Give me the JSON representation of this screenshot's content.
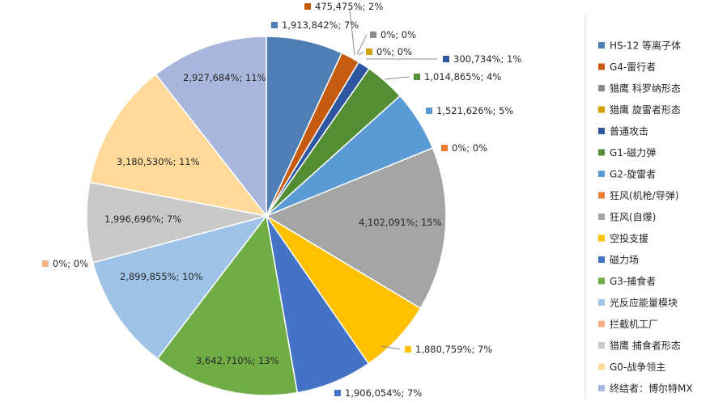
{
  "chart_data": {
    "type": "pie",
    "title": "",
    "legend_position": "right",
    "slices": [
      {
        "name": "HS-12 等离子体",
        "value": 1913842,
        "label": "1,913,842%; 7%",
        "color": "#4e7eb3"
      },
      {
        "name": "G4-雷行者",
        "value": 475475,
        "label": "475,475%; 2%",
        "color": "#c55a11"
      },
      {
        "name": "猎鹰 科罗纳形态",
        "value": 0,
        "label": "0%; 0%",
        "color": "#8c8c8c"
      },
      {
        "name": "猎鹰 旋雷者形态",
        "value": 0,
        "label": "0%; 0%",
        "color": "#d4a000"
      },
      {
        "name": "普通攻击",
        "value": 300734,
        "label": "300,734%; 1%",
        "color": "#2f56a0"
      },
      {
        "name": "G1-磁力弹",
        "value": 1014865,
        "label": "1,014,865%; 4%",
        "color": "#538e35"
      },
      {
        "name": "G2-旋雷者",
        "value": 1521626,
        "label": "1,521,626%; 5%",
        "color": "#5b9bd5"
      },
      {
        "name": "狂风(机枪/导弹)",
        "value": 0,
        "label": "0%; 0%",
        "color": "#ed7d31"
      },
      {
        "name": "狂风(自爆)",
        "value": 4102091,
        "label": "4,102,091%; 15%",
        "color": "#a5a5a5"
      },
      {
        "name": "空投支援",
        "value": 1880759,
        "label": "1,880,759%; 7%",
        "color": "#ffc000"
      },
      {
        "name": "磁力场",
        "value": 1906054,
        "label": "1,906,054%; 7%",
        "color": "#4472c4"
      },
      {
        "name": "G3-捕食者",
        "value": 3642710,
        "label": "3,642,710%; 13%",
        "color": "#70ad47"
      },
      {
        "name": "光反应能量模块",
        "value": 2899855,
        "label": "2,899,855%; 10%",
        "color": "#9fc3e7"
      },
      {
        "name": "拦截机工厂",
        "value": 0,
        "label": "0%; 0%",
        "color": "#f4b183"
      },
      {
        "name": "猎鹰 捕食者形态",
        "value": 1996696,
        "label": "1,996,696%; 7%",
        "color": "#c9c9c9"
      },
      {
        "name": "G0-战争领主",
        "value": 3180530,
        "label": "3,180,530%; 11%",
        "color": "#ffd99a"
      },
      {
        "name": "终结者：博尔特MX",
        "value": 2927684,
        "label": "2,927,684%; 11%",
        "color": "#a9b7dc"
      }
    ]
  }
}
